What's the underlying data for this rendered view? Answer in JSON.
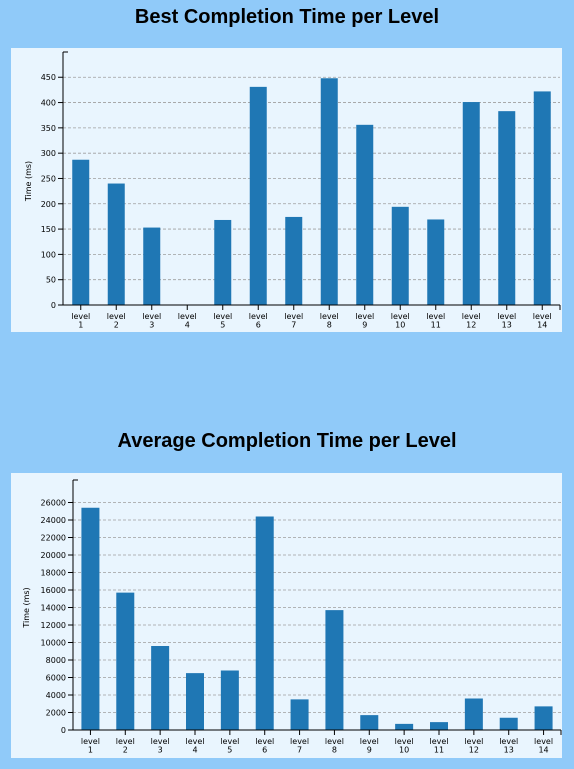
{
  "chart_data": [
    {
      "type": "bar",
      "title": "Best Completion Time per Level",
      "ylabel": "Time (ms)",
      "xlabel": "",
      "ylim": [
        0,
        490
      ],
      "yticks": [
        0,
        50,
        100,
        150,
        200,
        250,
        300,
        350,
        400,
        450
      ],
      "grid": true,
      "bar_color": "#1f77b4",
      "categories": [
        [
          "level",
          "1"
        ],
        [
          "level",
          "2"
        ],
        [
          "level",
          "3"
        ],
        [
          "level",
          "4"
        ],
        [
          "level",
          "5"
        ],
        [
          "level",
          "6"
        ],
        [
          "level",
          "7"
        ],
        [
          "level",
          "8"
        ],
        [
          "level",
          "9"
        ],
        [
          "level",
          "10"
        ],
        [
          "level",
          "11"
        ],
        [
          "level",
          "12"
        ],
        [
          "level",
          "13"
        ],
        [
          "level",
          "14"
        ]
      ],
      "values": [
        287,
        240,
        153,
        0,
        168,
        431,
        174,
        448,
        356,
        194,
        169,
        401,
        383,
        422
      ]
    },
    {
      "type": "bar",
      "title": "Average Completion Time per Level",
      "ylabel": "Time (ms)",
      "xlabel": "",
      "ylim": [
        0,
        28000
      ],
      "yticks": [
        0,
        2000,
        4000,
        6000,
        8000,
        10000,
        12000,
        14000,
        16000,
        18000,
        20000,
        22000,
        24000,
        26000
      ],
      "grid": true,
      "bar_color": "#1f77b4",
      "categories": [
        [
          "level",
          "1"
        ],
        [
          "level",
          "2"
        ],
        [
          "level",
          "3"
        ],
        [
          "level",
          "4"
        ],
        [
          "level",
          "5"
        ],
        [
          "level",
          "6"
        ],
        [
          "level",
          "7"
        ],
        [
          "level",
          "8"
        ],
        [
          "level",
          "9"
        ],
        [
          "level",
          "10"
        ],
        [
          "level",
          "11"
        ],
        [
          "level",
          "12"
        ],
        [
          "level",
          "13"
        ],
        [
          "level",
          "14"
        ]
      ],
      "values": [
        25400,
        15700,
        9600,
        6500,
        6800,
        24400,
        3500,
        13700,
        1700,
        700,
        900,
        3600,
        1400,
        2700
      ]
    }
  ]
}
